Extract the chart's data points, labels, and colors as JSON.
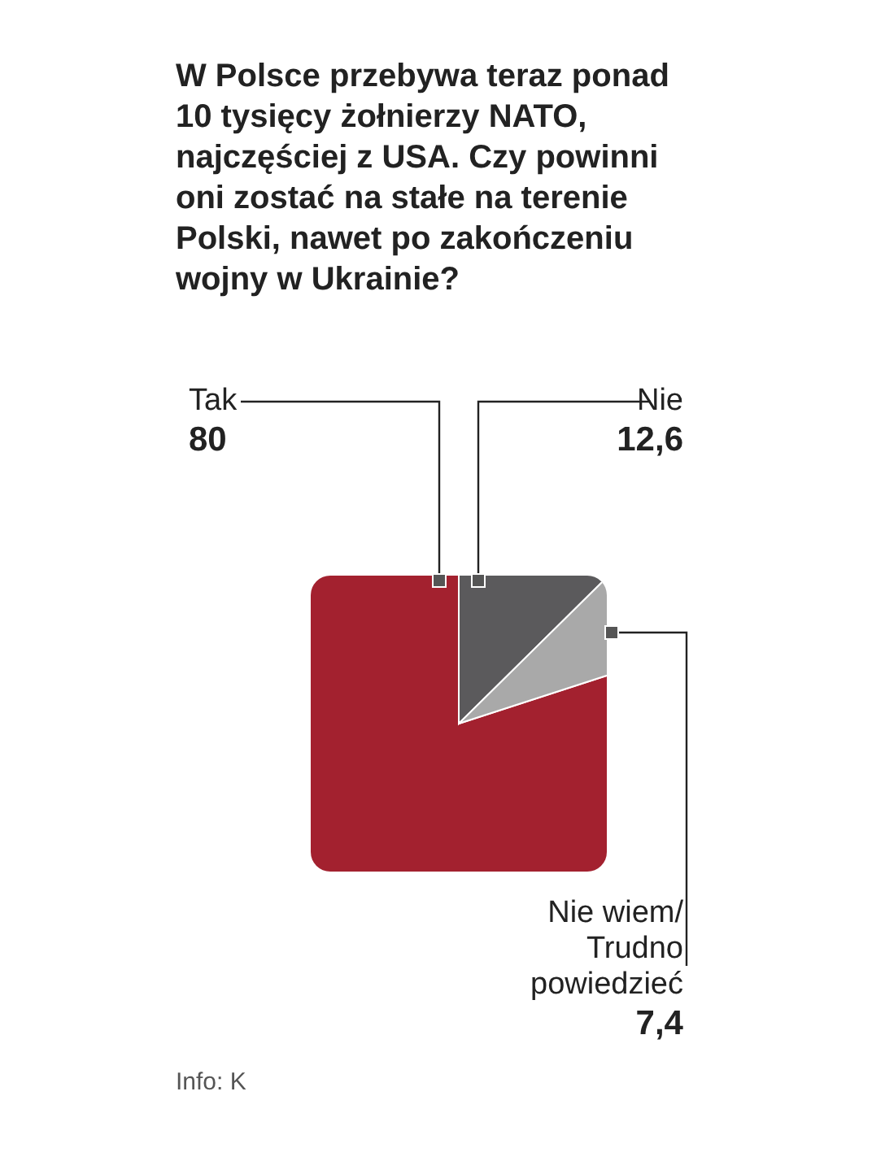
{
  "chart_data": {
    "type": "pie",
    "title": "W Polsce przebywa teraz ponad 10 tysięcy żołnierzy NATO, najczęściej z USA. Czy powinni oni zostać na stałe na terenie Polski, nawet po zakończeniu wojny w Ukrainie?",
    "categories": [
      "Tak",
      "Nie",
      "Nie wiem/ Trudno powiedzieć"
    ],
    "values": [
      80,
      12.6,
      7.4
    ],
    "colors": [
      "#a3212f",
      "#5b5a5c",
      "#a9a9a9"
    ],
    "value_labels": [
      "80",
      "12,6",
      "7,4"
    ],
    "annotations": [
      "Info: K"
    ]
  }
}
